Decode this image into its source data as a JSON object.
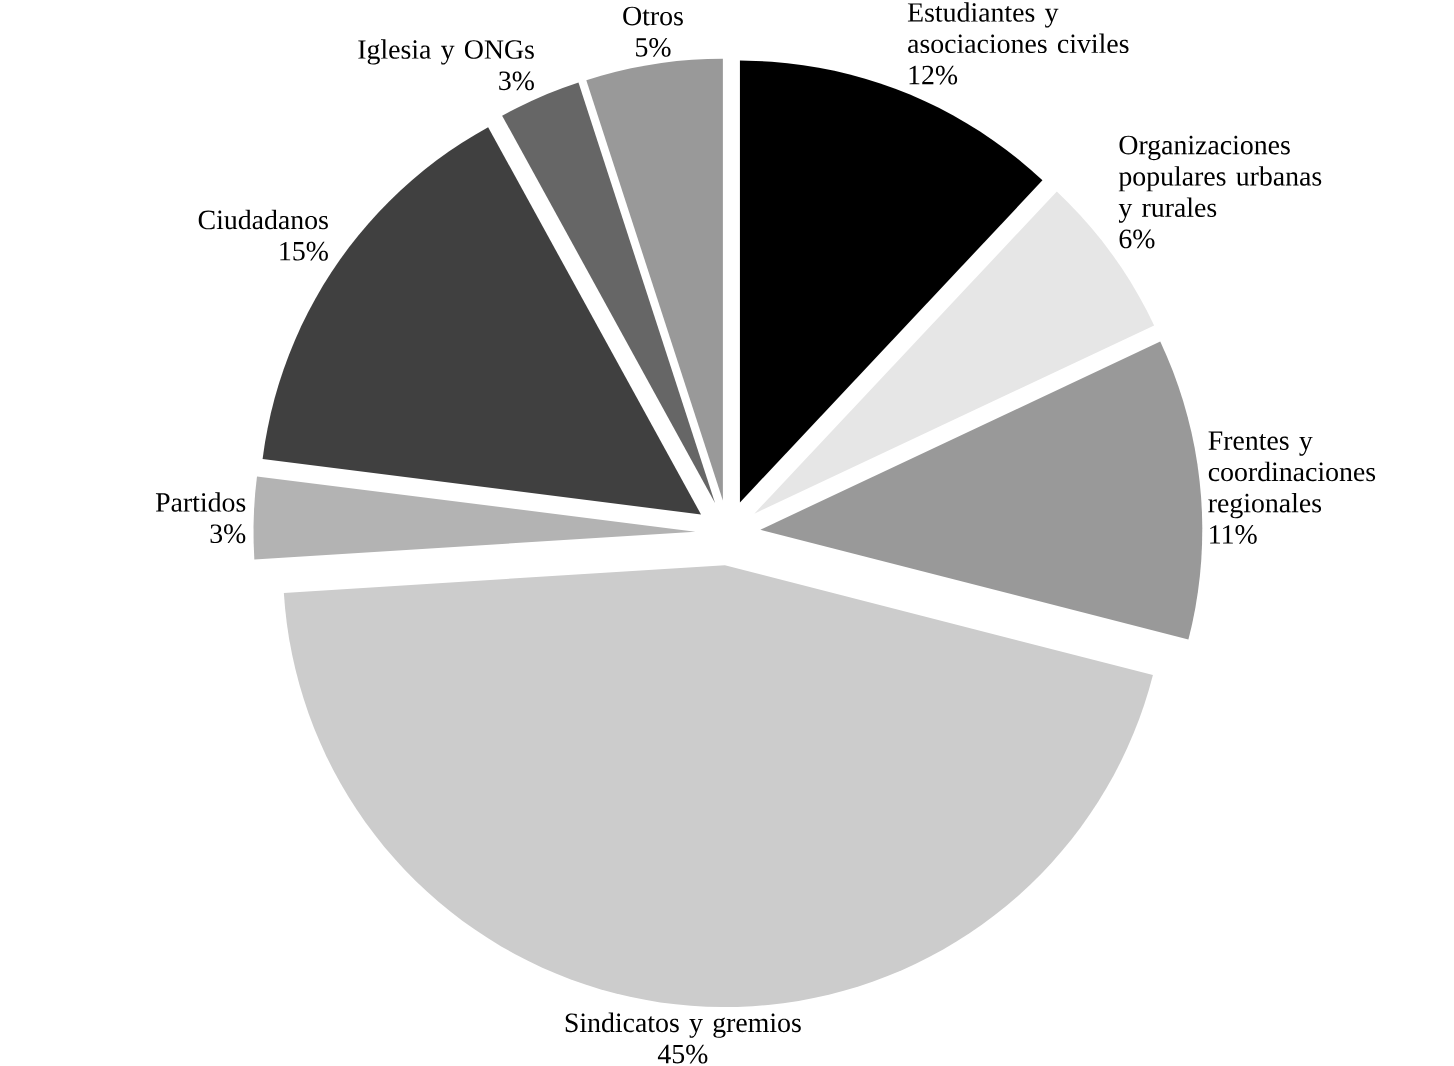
{
  "chart_data": {
    "type": "pie",
    "categories": [
      "Estudiantes y asociaciones civiles",
      "Organizaciones populares urbanas y rurales",
      "Frentes y coordinaciones regionales",
      "Sindicatos y gremios",
      "Partidos",
      "Ciudadanos",
      "Iglesia y ONGs",
      "Otros"
    ],
    "values": [
      12,
      6,
      11,
      45,
      3,
      15,
      3,
      5
    ],
    "value_labels": [
      "12%",
      "6%",
      "11%",
      "45%",
      "3%",
      "15%",
      "3%",
      "5%"
    ],
    "colors": [
      "#000000",
      "#e6e6e6",
      "#999999",
      "#cccccc",
      "#b3b3b3",
      "#404040",
      "#666666",
      "#999999"
    ]
  }
}
